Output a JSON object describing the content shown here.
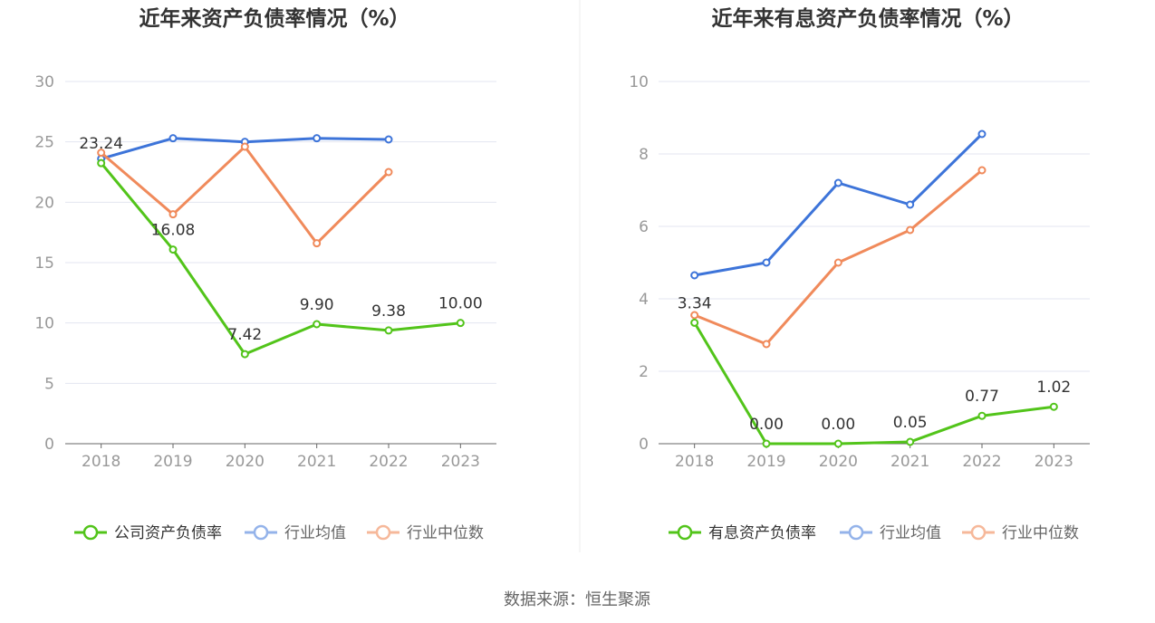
{
  "chart_data": [
    {
      "type": "line",
      "title": "近年来资产负债率情况（%）",
      "categories": [
        "2018",
        "2019",
        "2020",
        "2021",
        "2022",
        "2023"
      ],
      "ylim": [
        0,
        30
      ],
      "yticks": [
        0,
        5,
        10,
        15,
        20,
        25,
        30
      ],
      "series": [
        {
          "name": "公司资产负债率",
          "color": "#52c41a",
          "values": [
            23.24,
            16.08,
            7.42,
            9.9,
            9.38,
            10.0
          ],
          "labels": [
            "23.24",
            "16.08",
            "7.42",
            "9.90",
            "9.38",
            "10.00"
          ]
        },
        {
          "name": "行业均值",
          "color": "#3d74d9",
          "values": [
            23.6,
            25.3,
            25.0,
            25.3,
            25.2,
            null
          ]
        },
        {
          "name": "行业中位数",
          "color": "#f08a5b",
          "values": [
            24.1,
            19.0,
            24.6,
            16.6,
            22.5,
            null
          ]
        }
      ],
      "grid": true,
      "legend": "bottom"
    },
    {
      "type": "line",
      "title": "近年来有息资产负债率情况（%）",
      "categories": [
        "2018",
        "2019",
        "2020",
        "2021",
        "2022",
        "2023"
      ],
      "ylim": [
        0,
        10
      ],
      "yticks": [
        0,
        2,
        4,
        6,
        8,
        10
      ],
      "series": [
        {
          "name": "有息资产负债率",
          "color": "#52c41a",
          "values": [
            3.34,
            0.0,
            0.0,
            0.05,
            0.77,
            1.02
          ],
          "labels": [
            "3.34",
            "0.00",
            "0.00",
            "0.05",
            "0.77",
            "1.02"
          ]
        },
        {
          "name": "行业均值",
          "color": "#3d74d9",
          "values": [
            4.65,
            5.0,
            7.2,
            6.6,
            8.55,
            null
          ]
        },
        {
          "name": "行业中位数",
          "color": "#f08a5b",
          "values": [
            3.55,
            2.75,
            5.0,
            5.9,
            7.55,
            null
          ]
        }
      ],
      "grid": true,
      "legend": "bottom"
    }
  ],
  "footer": {
    "source": "数据来源：恒生聚源"
  }
}
